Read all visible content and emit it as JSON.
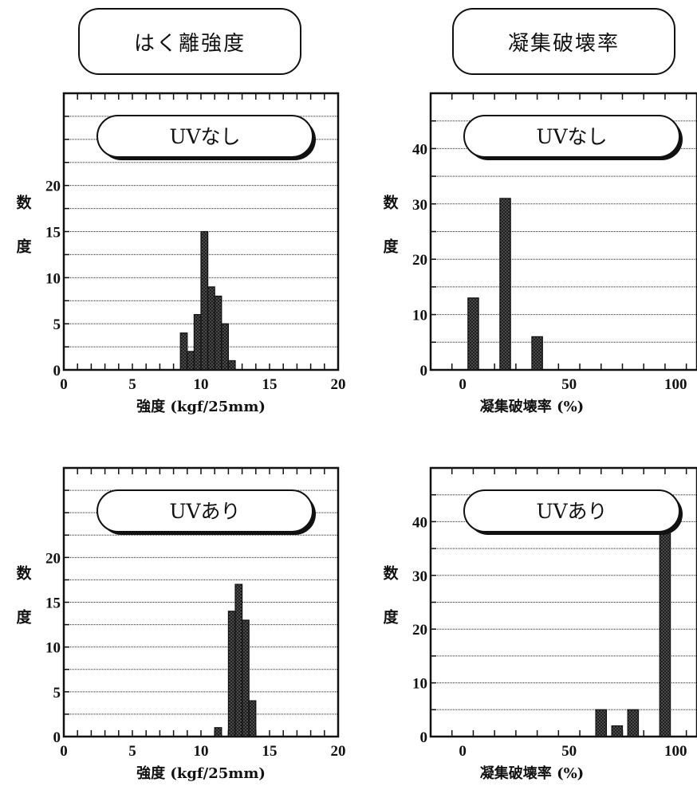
{
  "headers": {
    "left": "はく離強度",
    "right": "凝集破壊率"
  },
  "chart_data": [
    {
      "type": "bar",
      "legend_label": "UVなし",
      "xlabel": "強度 (kgf/25mm)",
      "ylabel": "度 数",
      "xlim": [
        0,
        20
      ],
      "ylim": [
        0,
        30
      ],
      "xticks": [
        0,
        5,
        10,
        15,
        20
      ],
      "yticks": [
        0,
        5,
        10,
        15,
        20
      ],
      "bin_width": 0.5,
      "x": [
        8.75,
        9.25,
        9.75,
        10.25,
        10.75,
        11.25,
        11.75,
        12.25
      ],
      "values": [
        4,
        2,
        6,
        15,
        9,
        8,
        5,
        1
      ],
      "grid": true
    },
    {
      "type": "bar",
      "legend_label": "UVなし",
      "xlabel": "凝集破壊率 (%)",
      "ylabel": "度 数",
      "xlim": [
        -15,
        110
      ],
      "ylim": [
        0,
        50
      ],
      "xticks": [
        0,
        50,
        100
      ],
      "yticks": [
        0,
        10,
        20,
        30,
        40
      ],
      "bin_width": 5,
      "x": [
        5,
        20,
        35
      ],
      "values": [
        13,
        31,
        6
      ],
      "grid": true
    },
    {
      "type": "bar",
      "legend_label": "UVあり",
      "xlabel": "強度 (kgf/25mm)",
      "ylabel": "度 数",
      "xlim": [
        0,
        20
      ],
      "ylim": [
        0,
        30
      ],
      "xticks": [
        0,
        5,
        10,
        15,
        20
      ],
      "yticks": [
        0,
        5,
        10,
        15,
        20
      ],
      "bin_width": 0.5,
      "x": [
        11.25,
        12.25,
        12.75,
        13.25,
        13.75
      ],
      "values": [
        1,
        14,
        17,
        13,
        4
      ],
      "grid": true
    },
    {
      "type": "bar",
      "legend_label": "UVあり",
      "xlabel": "凝集破壊率 (%)",
      "ylabel": "度 数",
      "xlim": [
        -15,
        110
      ],
      "ylim": [
        0,
        50
      ],
      "xticks": [
        0,
        50,
        100
      ],
      "yticks": [
        0,
        10,
        20,
        30,
        40
      ],
      "bin_width": 5,
      "x": [
        65,
        72.5,
        80,
        95
      ],
      "values": [
        5,
        2,
        5,
        38
      ],
      "grid": true
    }
  ]
}
